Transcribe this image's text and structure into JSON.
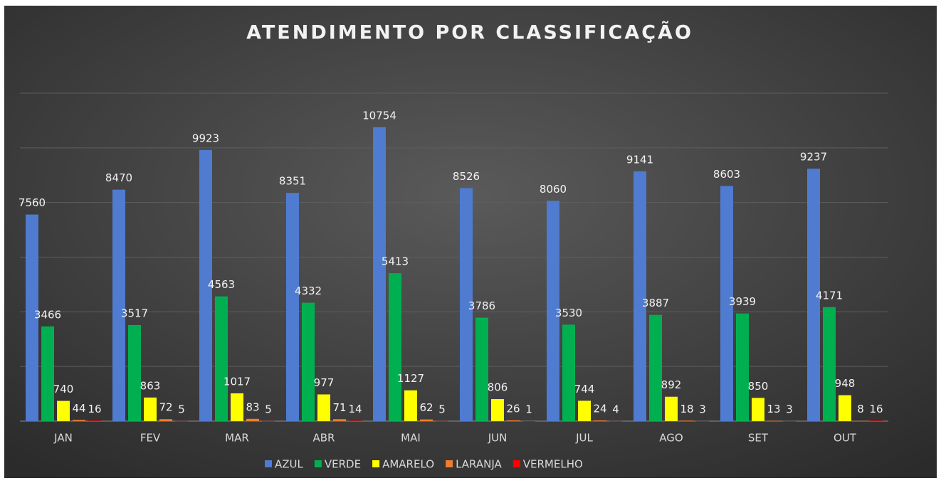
{
  "chart_data": {
    "type": "bar",
    "title": "ATENDIMENTO POR CLASSIFICAÇÃO",
    "categories": [
      "JAN",
      "FEV",
      "MAR",
      "ABR",
      "MAI",
      "JUN",
      "JUL",
      "AGO",
      "SET",
      "OUT"
    ],
    "series": [
      {
        "name": "AZUL",
        "color": "#4f7bd0",
        "values": [
          7560,
          8470,
          9923,
          8351,
          10754,
          8526,
          8060,
          9141,
          8603,
          9237
        ]
      },
      {
        "name": "VERDE",
        "color": "#00b050",
        "values": [
          3466,
          3517,
          4563,
          4332,
          5413,
          3786,
          3530,
          3887,
          3939,
          4171
        ]
      },
      {
        "name": "AMARELO",
        "color": "#ffff00",
        "values": [
          740,
          863,
          1017,
          977,
          1127,
          806,
          744,
          892,
          850,
          948
        ]
      },
      {
        "name": "LARANJA",
        "color": "#ed7d31",
        "values": [
          44,
          72,
          83,
          71,
          62,
          26,
          24,
          18,
          13,
          8
        ]
      },
      {
        "name": "VERMELHO",
        "color": "#ff0000",
        "values": [
          16,
          5,
          5,
          14,
          5,
          1,
          4,
          3,
          3,
          16
        ]
      }
    ],
    "ylim": [
      0,
      12000
    ],
    "yticks": [
      0,
      2000,
      4000,
      6000,
      8000,
      10000,
      12000
    ],
    "grid": true,
    "legend": "bottom"
  }
}
